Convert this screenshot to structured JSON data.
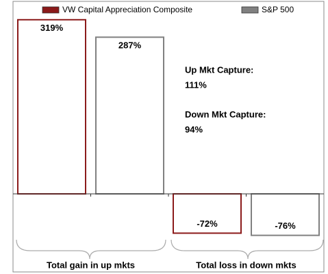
{
  "chart_data": {
    "type": "bar",
    "categories": [
      "Total gain in up mkts",
      "Total loss in down mkts"
    ],
    "series": [
      {
        "name": "VW Capital Appreciation Composite",
        "color": "#8b1a1a",
        "values": [
          319,
          -72
        ],
        "value_labels": [
          "319%",
          "-72%"
        ]
      },
      {
        "name": "S&P 500",
        "color": "#808080",
        "values": [
          287,
          -76
        ],
        "value_labels": [
          "287%",
          "-76%"
        ]
      }
    ],
    "ylim": [
      -100,
      320
    ],
    "annotations": [
      "Up Mkt Capture:",
      "111%",
      "Down Mkt Capture:",
      "94%"
    ]
  }
}
